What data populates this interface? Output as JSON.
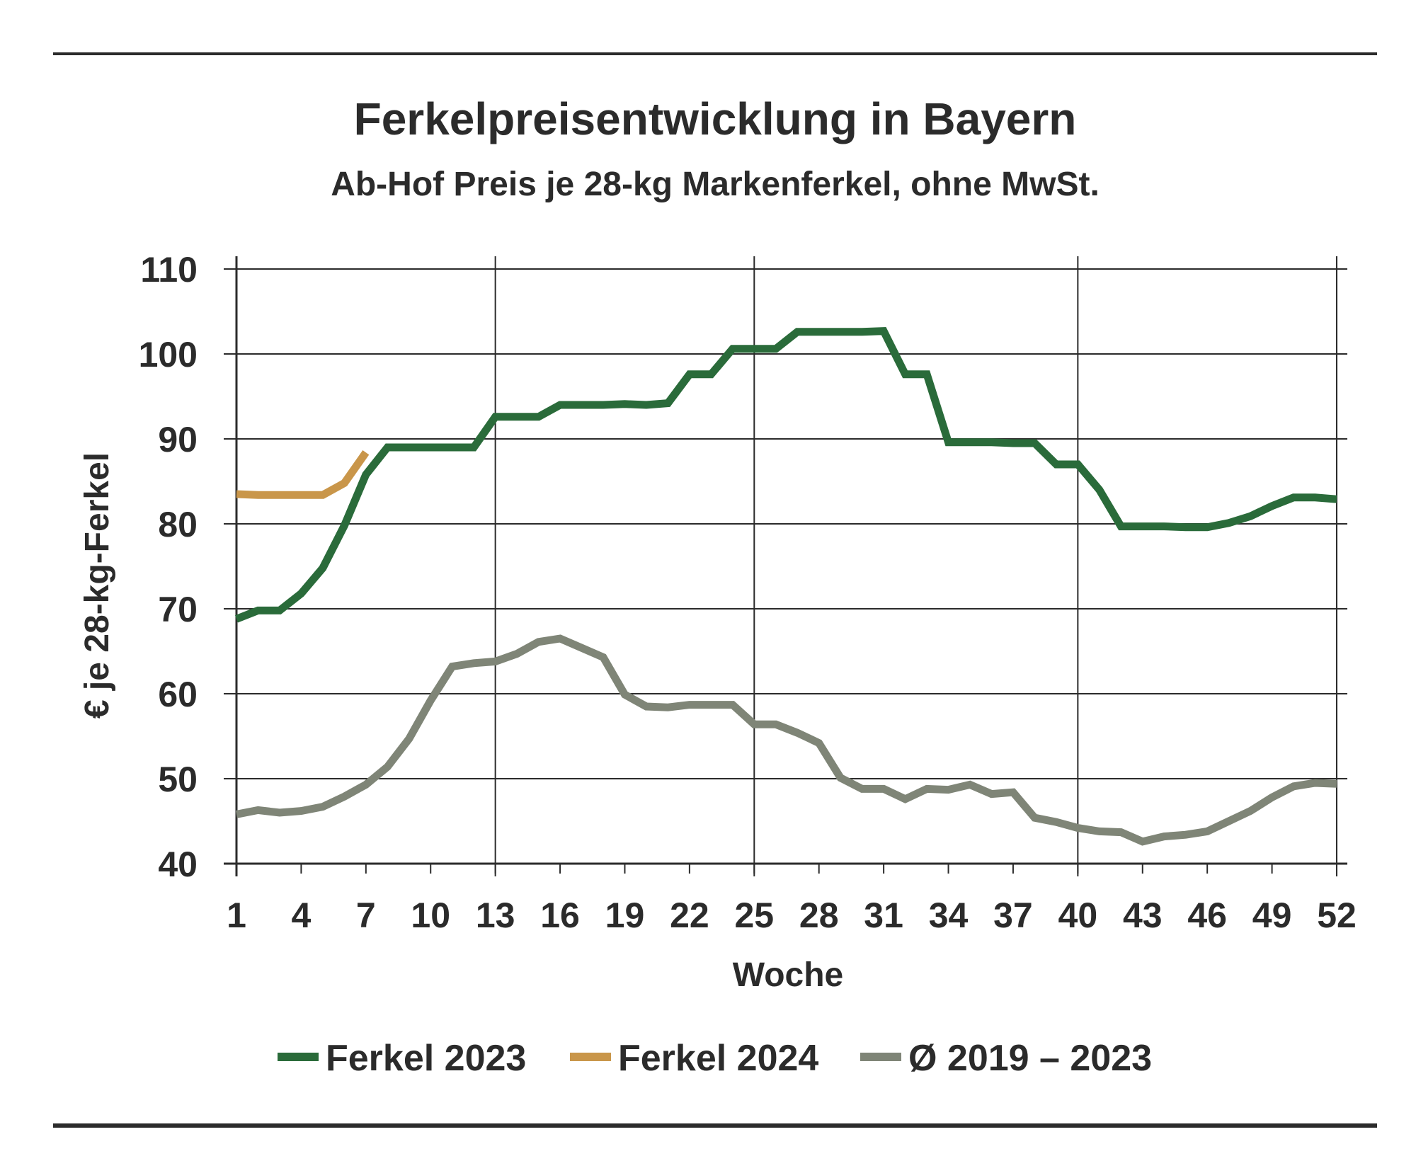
{
  "chart_data": {
    "type": "line",
    "title": "Ferkelpreisentwicklung in Bayern",
    "subtitle": "Ab-Hof Preis je 28-kg Markenferkel, ohne MwSt.",
    "xlabel": "Woche",
    "ylabel": "€ je 28-kg-Ferkel",
    "xlim": [
      1,
      52
    ],
    "ylim": [
      40,
      110
    ],
    "x_ticks": [
      1,
      4,
      7,
      10,
      13,
      16,
      19,
      22,
      25,
      28,
      31,
      34,
      37,
      40,
      43,
      46,
      49,
      52
    ],
    "y_ticks": [
      40,
      50,
      60,
      70,
      80,
      90,
      100,
      110
    ],
    "grid": true,
    "legend_position": "bottom",
    "series": [
      {
        "name": "Ferkel 2023",
        "color": "#2a6b3a",
        "x": [
          1,
          2,
          3,
          4,
          5,
          6,
          7,
          8,
          9,
          10,
          11,
          12,
          13,
          14,
          15,
          16,
          17,
          18,
          19,
          20,
          21,
          22,
          23,
          24,
          25,
          26,
          27,
          28,
          29,
          30,
          31,
          32,
          33,
          34,
          35,
          36,
          37,
          38,
          39,
          40,
          41,
          42,
          43,
          44,
          45,
          46,
          47,
          48,
          49,
          50,
          51,
          52
        ],
        "values": [
          68.8,
          69.8,
          69.8,
          71.8,
          74.8,
          79.8,
          85.8,
          89.0,
          89.0,
          89.0,
          89.0,
          89.0,
          92.6,
          92.6,
          92.6,
          94.0,
          94.0,
          94.0,
          94.1,
          94.0,
          94.2,
          97.6,
          97.6,
          100.6,
          100.6,
          100.6,
          102.6,
          102.6,
          102.6,
          102.6,
          102.7,
          97.6,
          97.6,
          89.6,
          89.6,
          89.6,
          89.5,
          89.5,
          87.0,
          87.0,
          84.0,
          79.7,
          79.7,
          79.7,
          79.6,
          79.6,
          80.1,
          80.9,
          82.1,
          83.1,
          83.1,
          82.9
        ]
      },
      {
        "name": "Ferkel 2024",
        "color": "#c9964a",
        "x": [
          1,
          2,
          3,
          4,
          5,
          6,
          7
        ],
        "values": [
          83.5,
          83.4,
          83.4,
          83.4,
          83.4,
          84.8,
          88.4
        ]
      },
      {
        "name": "Ø 2019 – 2023",
        "color": "#7f8577",
        "x": [
          1,
          2,
          3,
          4,
          5,
          6,
          7,
          8,
          9,
          10,
          11,
          12,
          13,
          14,
          15,
          16,
          17,
          18,
          19,
          20,
          21,
          22,
          23,
          24,
          25,
          26,
          27,
          28,
          29,
          30,
          31,
          32,
          33,
          34,
          35,
          36,
          37,
          38,
          39,
          40,
          41,
          42,
          43,
          44,
          45,
          46,
          47,
          48,
          49,
          50,
          51,
          52
        ],
        "values": [
          45.8,
          46.3,
          46.0,
          46.2,
          46.7,
          47.9,
          49.3,
          51.4,
          54.7,
          59.2,
          63.2,
          63.6,
          63.8,
          64.7,
          66.1,
          66.5,
          65.4,
          64.3,
          59.9,
          58.5,
          58.4,
          58.7,
          58.7,
          58.7,
          56.4,
          56.4,
          55.4,
          54.2,
          50.1,
          48.8,
          48.8,
          47.6,
          48.8,
          48.7,
          49.3,
          48.2,
          48.4,
          45.4,
          44.9,
          44.2,
          43.8,
          43.7,
          42.6,
          43.2,
          43.4,
          43.8,
          45.0,
          46.2,
          47.8,
          49.1,
          49.5,
          49.4
        ]
      }
    ]
  }
}
